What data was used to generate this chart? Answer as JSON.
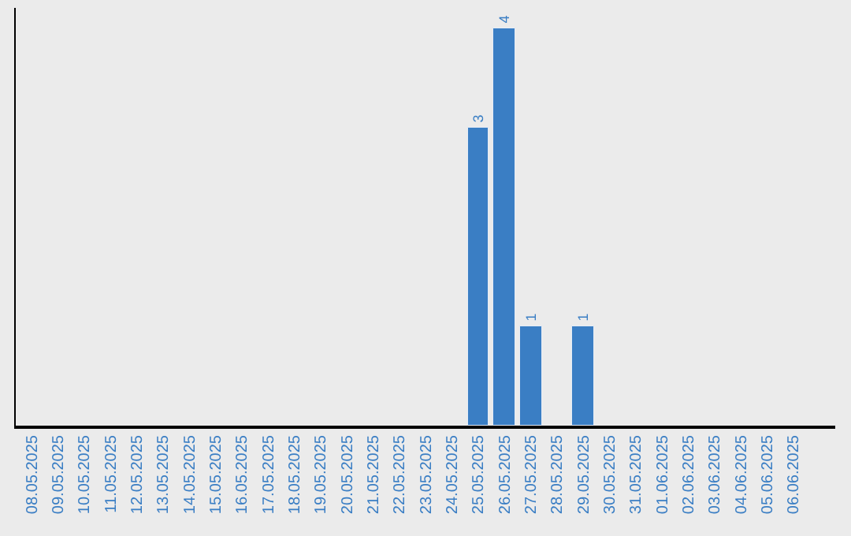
{
  "chart_data": {
    "type": "bar",
    "categories": [
      "08.05.2025",
      "09.05.2025",
      "10.05.2025",
      "11.05.2025",
      "12.05.2025",
      "13.05.2025",
      "14.05.2025",
      "15.05.2025",
      "16.05.2025",
      "17.05.2025",
      "18.05.2025",
      "19.05.2025",
      "20.05.2025",
      "21.05.2025",
      "22.05.2025",
      "23.05.2025",
      "24.05.2025",
      "25.05.2025",
      "26.05.2025",
      "27.05.2025",
      "28.05.2025",
      "29.05.2025",
      "30.05.2025",
      "31.05.2025",
      "01.06.2025",
      "02.06.2025",
      "03.06.2025",
      "04.06.2025",
      "05.06.2025",
      "06.06.2025"
    ],
    "values": [
      null,
      null,
      null,
      null,
      null,
      null,
      null,
      null,
      null,
      null,
      null,
      null,
      null,
      null,
      null,
      null,
      null,
      3,
      4,
      1,
      null,
      1,
      null,
      null,
      null,
      null,
      null,
      null,
      null,
      null
    ],
    "color": "#3a7ec4",
    "ylim": [
      0,
      4.2
    ],
    "data_labels": true,
    "grid": false,
    "tick_labels": "x"
  }
}
